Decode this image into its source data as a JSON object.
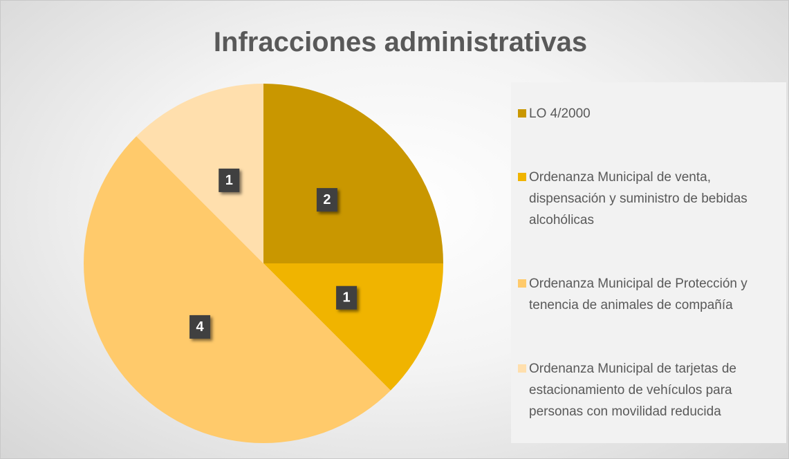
{
  "chart_data": {
    "type": "pie",
    "title": "Infracciones administrativas",
    "categories": [
      "LO 4/2000",
      "Ordenanza Municipal de venta, dispensación y suministro de bebidas alcohólicas",
      "Ordenanza Municipal de Protección y tenencia de animales de compañía",
      "Ordenanza Municipal de tarjetas de estacionamiento de vehículos para personas con movilidad reducida"
    ],
    "values": [
      2,
      1,
      4,
      1
    ],
    "colors": [
      "#c99700",
      "#f0b400",
      "#ffca6b",
      "#ffdfad"
    ],
    "legend": "right"
  }
}
